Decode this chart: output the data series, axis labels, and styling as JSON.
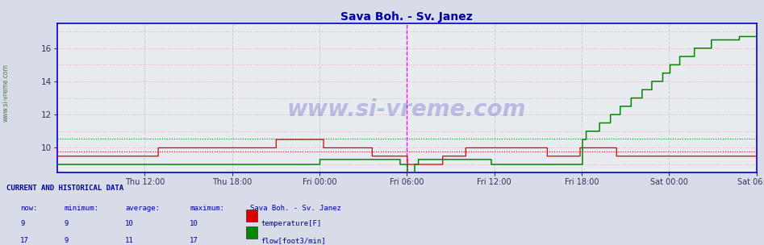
{
  "title": "Sava Boh. - Sv. Janez",
  "title_color": "#0000aa",
  "bg_color": "#d8dce8",
  "plot_bg_color": "#e8ecf0",
  "border_color": "#0000cc",
  "grid_h_color": "#ffaaaa",
  "grid_v_color": "#ccccdd",
  "x_tick_labels": [
    "Thu 12:00",
    "Thu 18:00",
    "Fri 00:00",
    "Fri 06:00",
    "Fri 12:00",
    "Fri 18:00",
    "Sat 00:00",
    "Sat 06:00"
  ],
  "x_tick_positions": [
    0.125,
    0.25,
    0.375,
    0.5,
    0.625,
    0.75,
    0.875,
    1.0
  ],
  "ylim": [
    8.5,
    17.5
  ],
  "yticks": [
    10,
    12,
    14,
    16
  ],
  "temp_avg_line": 9.8,
  "flow_avg_line": 10.55,
  "magenta_line1": 0.5,
  "magenta_line2": 1.0,
  "watermark": "www.si-vreme.com",
  "watermark_color": "#0000aa",
  "watermark_alpha": 0.2,
  "left_label": "www.si-vreme.com",
  "temp_color": "#dd0000",
  "flow_color": "#008800",
  "footer_bg": "#c8d4e8",
  "footer_text_color": "#0000aa",
  "now_label": "now:",
  "min_label": "minimum:",
  "avg_label": "average:",
  "max_label": "maximum:",
  "station_label": "Sava Boh. - Sv. Janez",
  "temp_now": 9,
  "temp_min": 9,
  "temp_avg": 10,
  "temp_max": 10,
  "flow_now": 17,
  "flow_min": 9,
  "flow_avg": 11,
  "flow_max": 17,
  "temp_label": "temperature[F]",
  "flow_label": "flow[foot3/min]",
  "header_label": "CURRENT AND HISTORICAL DATA"
}
